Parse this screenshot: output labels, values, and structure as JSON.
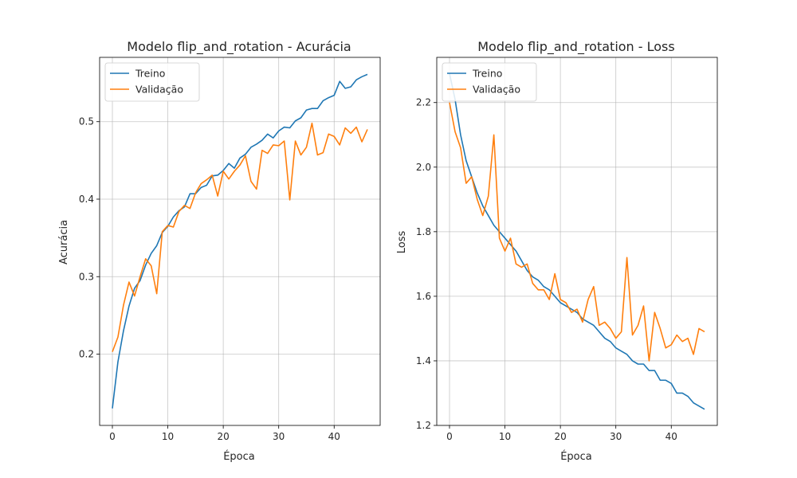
{
  "chart_data": [
    {
      "type": "line",
      "title": "Modelo flip_and_rotation - Acurácia",
      "xlabel": "Época",
      "ylabel": "Acurácia",
      "xlim": [
        -2.3,
        48.3
      ],
      "ylim": [
        0.108,
        0.583
      ],
      "xticks": [
        0,
        10,
        20,
        30,
        40
      ],
      "yticks": [
        0.2,
        0.3,
        0.4,
        0.5
      ],
      "ytick_labels": [
        "0.2",
        "0.3",
        "0.4",
        "0.5"
      ],
      "grid": true,
      "legend_position": "upper left",
      "x": [
        0,
        1,
        2,
        3,
        4,
        5,
        6,
        7,
        8,
        9,
        10,
        11,
        12,
        13,
        14,
        15,
        16,
        17,
        18,
        19,
        20,
        21,
        22,
        23,
        24,
        25,
        26,
        27,
        28,
        29,
        30,
        31,
        32,
        33,
        34,
        35,
        36,
        37,
        38,
        39,
        40,
        41,
        42,
        43,
        44,
        45,
        46
      ],
      "series": [
        {
          "name": "Treino",
          "color": "#1f77b4",
          "values": [
            0.13,
            0.19,
            0.23,
            0.262,
            0.285,
            0.295,
            0.315,
            0.33,
            0.34,
            0.357,
            0.365,
            0.377,
            0.385,
            0.39,
            0.407,
            0.407,
            0.415,
            0.418,
            0.43,
            0.431,
            0.437,
            0.446,
            0.44,
            0.453,
            0.458,
            0.467,
            0.471,
            0.476,
            0.484,
            0.479,
            0.488,
            0.493,
            0.492,
            0.501,
            0.505,
            0.515,
            0.517,
            0.517,
            0.527,
            0.531,
            0.534,
            0.552,
            0.543,
            0.545,
            0.554,
            0.558,
            0.561
          ]
        },
        {
          "name": "Validação",
          "color": "#ff7f0e",
          "values": [
            0.203,
            0.222,
            0.263,
            0.293,
            0.275,
            0.3,
            0.323,
            0.314,
            0.278,
            0.358,
            0.366,
            0.364,
            0.384,
            0.392,
            0.388,
            0.408,
            0.42,
            0.425,
            0.431,
            0.404,
            0.436,
            0.426,
            0.436,
            0.444,
            0.456,
            0.423,
            0.413,
            0.463,
            0.459,
            0.47,
            0.469,
            0.475,
            0.399,
            0.475,
            0.457,
            0.467,
            0.498,
            0.457,
            0.46,
            0.484,
            0.481,
            0.47,
            0.492,
            0.485,
            0.493,
            0.474,
            0.49
          ]
        }
      ]
    },
    {
      "type": "line",
      "title": "Modelo flip_and_rotation - Loss",
      "xlabel": "Época",
      "ylabel": "Loss",
      "xlim": [
        -2.3,
        48.3
      ],
      "ylim": [
        1.2,
        2.34
      ],
      "xticks": [
        0,
        10,
        20,
        30,
        40
      ],
      "yticks": [
        1.2,
        1.4,
        1.6,
        1.8,
        2.0,
        2.2
      ],
      "ytick_labels": [
        "1.2",
        "1.4",
        "1.6",
        "1.8",
        "2.0",
        "2.2"
      ],
      "grid": true,
      "legend_position": "upper left",
      "x": [
        0,
        1,
        2,
        3,
        4,
        5,
        6,
        7,
        8,
        9,
        10,
        11,
        12,
        13,
        14,
        15,
        16,
        17,
        18,
        19,
        20,
        21,
        22,
        23,
        24,
        25,
        26,
        27,
        28,
        29,
        30,
        31,
        32,
        33,
        34,
        35,
        36,
        37,
        38,
        39,
        40,
        41,
        42,
        43,
        44,
        45,
        46
      ],
      "series": [
        {
          "name": "Treino",
          "color": "#1f77b4",
          "values": [
            2.29,
            2.21,
            2.1,
            2.02,
            1.97,
            1.92,
            1.88,
            1.85,
            1.82,
            1.8,
            1.78,
            1.76,
            1.74,
            1.71,
            1.68,
            1.66,
            1.65,
            1.63,
            1.62,
            1.6,
            1.58,
            1.57,
            1.56,
            1.55,
            1.53,
            1.52,
            1.51,
            1.49,
            1.47,
            1.46,
            1.44,
            1.43,
            1.42,
            1.4,
            1.39,
            1.39,
            1.37,
            1.37,
            1.34,
            1.34,
            1.33,
            1.3,
            1.3,
            1.29,
            1.27,
            1.26,
            1.25
          ]
        },
        {
          "name": "Validação",
          "color": "#ff7f0e",
          "values": [
            2.2,
            2.11,
            2.06,
            1.95,
            1.97,
            1.9,
            1.85,
            1.91,
            2.1,
            1.78,
            1.74,
            1.78,
            1.7,
            1.69,
            1.7,
            1.64,
            1.62,
            1.62,
            1.59,
            1.67,
            1.59,
            1.58,
            1.55,
            1.56,
            1.52,
            1.59,
            1.63,
            1.51,
            1.52,
            1.5,
            1.47,
            1.49,
            1.72,
            1.48,
            1.51,
            1.57,
            1.4,
            1.55,
            1.5,
            1.44,
            1.45,
            1.48,
            1.46,
            1.47,
            1.42,
            1.5,
            1.49
          ]
        }
      ]
    }
  ]
}
